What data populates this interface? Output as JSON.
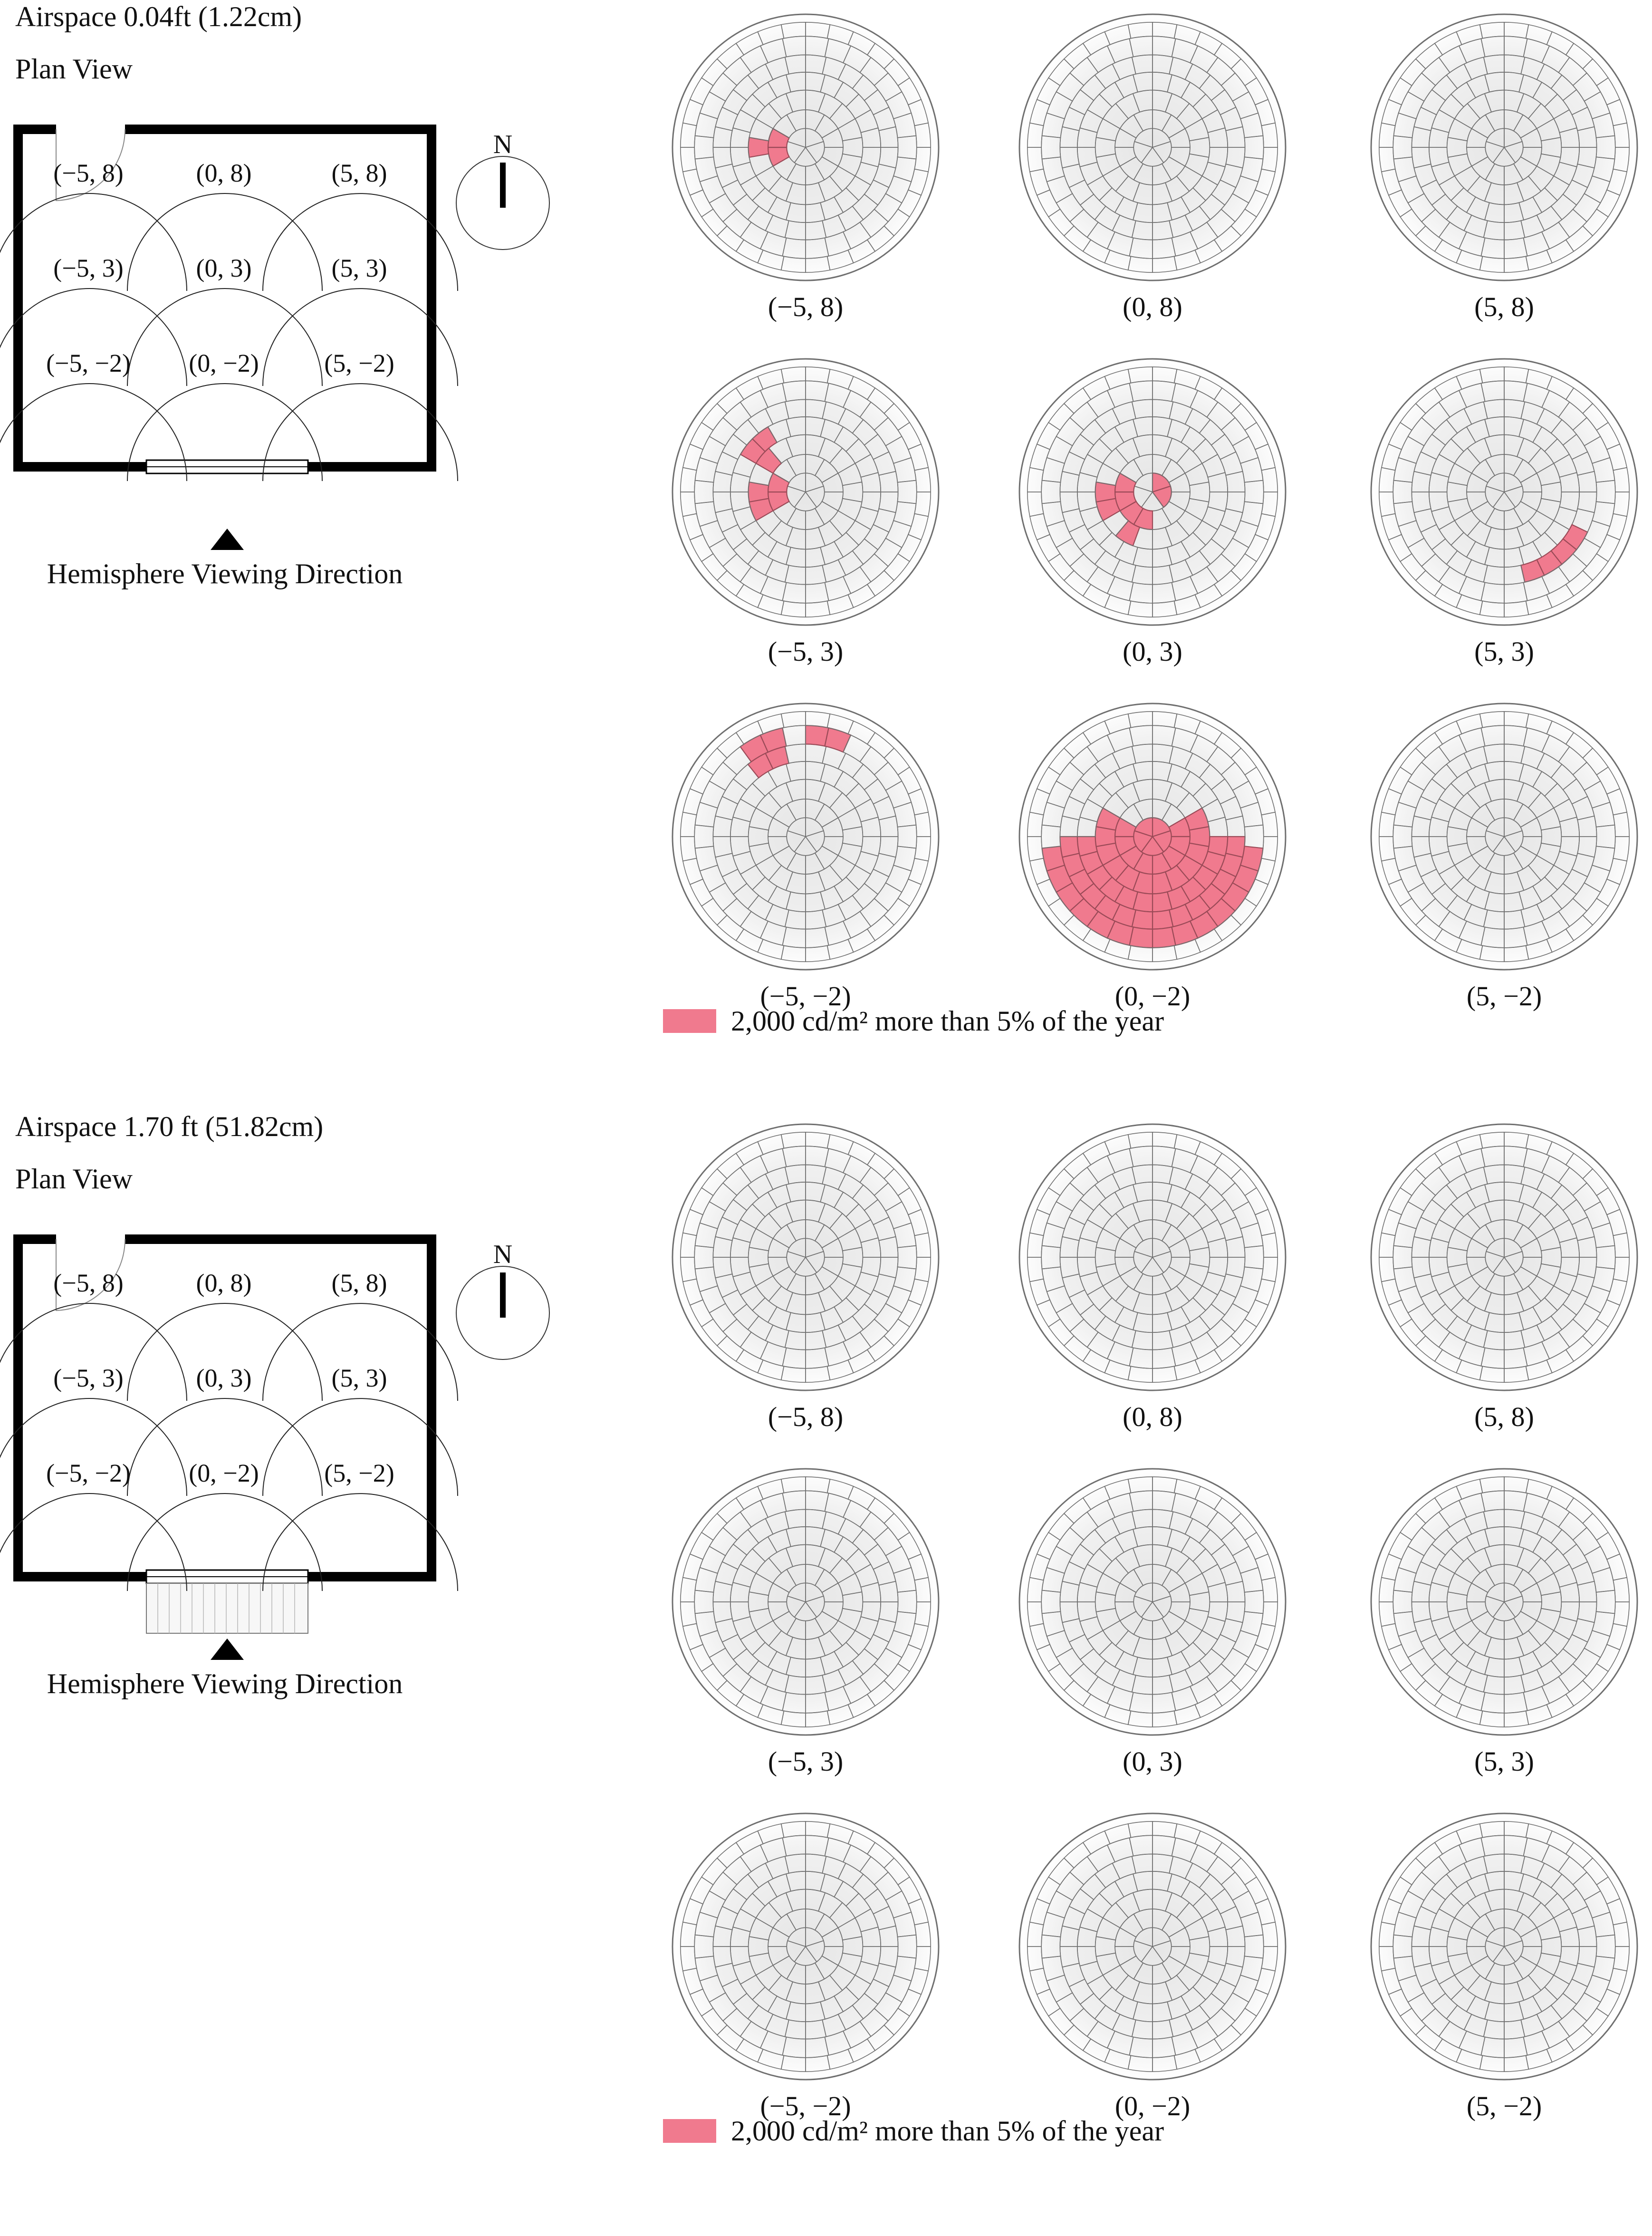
{
  "sections": [
    {
      "airspace_label": "Airspace 0.04ft (1.22cm)",
      "plan_view_label": "Plan View",
      "north_label": "N",
      "viewing_direction_label": "Hemisphere Viewing Direction",
      "plan_point_labels": [
        "(−5, 8)",
        "(0, 8)",
        "(5, 8)",
        "(−5, 3)",
        "(0, 3)",
        "(5, 3)",
        "(−5, −2)",
        "(0, −2)",
        "(5, −2)"
      ],
      "hemispheres": [
        {
          "label": "(−5, 8)",
          "glare_cells": [
            [
              1,
              8
            ],
            [
              1,
              9
            ],
            [
              2,
              9
            ]
          ]
        },
        {
          "label": "(0, 8)",
          "glare_cells": []
        },
        {
          "label": "(5, 8)",
          "glare_cells": []
        },
        {
          "label": "(−5, 3)",
          "glare_cells": [
            [
              1,
              8
            ],
            [
              1,
              9
            ],
            [
              2,
              8
            ],
            [
              2,
              9
            ],
            [
              2,
              10
            ],
            [
              3,
              10
            ]
          ]
        },
        {
          "label": "(0, 3)",
          "glare_cells": [
            [
              0,
              0
            ],
            [
              0,
              1
            ],
            [
              0,
              2
            ],
            [
              0,
              3
            ],
            [
              0,
              4
            ],
            [
              1,
              6
            ],
            [
              1,
              7
            ],
            [
              1,
              8
            ],
            [
              1,
              9
            ],
            [
              2,
              7
            ],
            [
              2,
              8
            ],
            [
              2,
              9
            ]
          ]
        },
        {
          "label": "(5, 3)",
          "glare_cells": [
            [
              4,
              4
            ],
            [
              4,
              5
            ]
          ]
        },
        {
          "label": "(−5, −2)",
          "glare_cells": [
            [
              5,
              11
            ],
            [
              5,
              12
            ],
            [
              4,
              11
            ]
          ]
        },
        {
          "label": "(0, −2)",
          "glare_cells": "lower-hemisphere"
        },
        {
          "label": "(5, −2)",
          "glare_cells": []
        }
      ],
      "legend": {
        "swatch_color": "#f07a8e",
        "text": "2,000 cd/m² more than 5% of the year"
      }
    },
    {
      "airspace_label": "Airspace 1.70 ft (51.82cm)",
      "plan_view_label": "Plan View",
      "north_label": "N",
      "viewing_direction_label": "Hemisphere Viewing Direction",
      "plan_point_labels": [
        "(−5, 8)",
        "(0, 8)",
        "(5, 8)",
        "(−5, 3)",
        "(0, 3)",
        "(5, 3)",
        "(−5, −2)",
        "(0, −2)",
        "(5, −2)"
      ],
      "hemispheres": [
        {
          "label": "(−5, 8)",
          "glare_cells": []
        },
        {
          "label": "(0, 8)",
          "glare_cells": []
        },
        {
          "label": "(5, 8)",
          "glare_cells": []
        },
        {
          "label": "(−5, 3)",
          "glare_cells": []
        },
        {
          "label": "(0, 3)",
          "glare_cells": []
        },
        {
          "label": "(5, 3)",
          "glare_cells": []
        },
        {
          "label": "(−5, −2)",
          "glare_cells": []
        },
        {
          "label": "(0, −2)",
          "glare_cells": []
        },
        {
          "label": "(5, −2)",
          "glare_cells": []
        }
      ],
      "legend": {
        "swatch_color": "#f07a8e",
        "text": "2,000 cd/m² more than 5% of the year"
      }
    }
  ],
  "colors": {
    "glare": "#f07a8e",
    "glare_stroke": "#9a4a57",
    "grid_line": "#6f6f6f",
    "hemisphere_fill_center": "#e9e9e9",
    "hemisphere_fill_edge": "#ffffff",
    "wall": "#000000"
  }
}
